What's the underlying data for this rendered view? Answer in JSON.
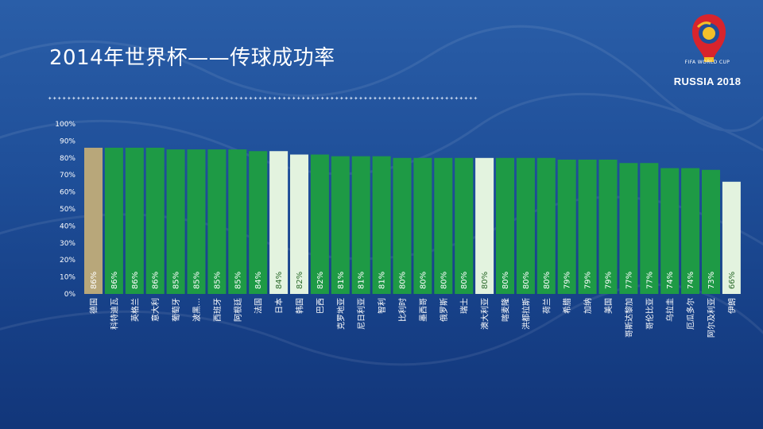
{
  "slide": {
    "title": "2014年世界杯——传球成功率",
    "divider": "✦✦✦✦✦✦✦✦✦✦✦✦✦✦✦✦✦✦✦✦✦✦✦✦✦✦✦✦✦✦✦✦✦✦✦✦✦✦✦✦✦✦✦✦✦✦✦✦✦✦✦✦✦✦✦✦✦✦✦✦✦✦✦✦✦✦✦✦✦✦✦✦✦✦✦✦✦✦✦✦✦✦✦✦✦✦✦✦✦✦",
    "logo_line1": "FIFA WORLD CUP",
    "logo_line2": "RUSSIA 2018",
    "logo_icon": "fifa-world-cup-trophy-icon"
  },
  "colors": {
    "bar_default": "#1e9a45",
    "bar_highlight_gold": "#b8a77a",
    "bar_highlight_light": "#e3f3df",
    "label_on_light": "#2a6a2a"
  },
  "chart_data": {
    "type": "bar",
    "title": "2014年世界杯——传球成功率",
    "categories": [
      "德国",
      "科特迪瓦",
      "英格兰",
      "意大利",
      "葡萄牙",
      "波黑…",
      "西班牙",
      "阿根廷",
      "法国",
      "日本",
      "韩国",
      "巴西",
      "克罗地亚",
      "尼日利亚",
      "智利",
      "比利时",
      "墨西哥",
      "俄罗斯",
      "瑞士",
      "澳大利亚",
      "喀麦隆",
      "洪都拉斯",
      "荷兰",
      "希腊",
      "加纳",
      "美国",
      "哥斯达黎加",
      "哥伦比亚",
      "乌拉圭",
      "厄瓜多尔",
      "阿尔及利亚",
      "伊朗"
    ],
    "values": [
      86,
      86,
      86,
      86,
      85,
      85,
      85,
      85,
      84,
      84,
      82,
      82,
      81,
      81,
      81,
      80,
      80,
      80,
      80,
      80,
      80,
      80,
      80,
      79,
      79,
      79,
      77,
      77,
      74,
      74,
      73,
      66
    ],
    "value_labels": [
      "86%",
      "86%",
      "86%",
      "86%",
      "85%",
      "85%",
      "85%",
      "85%",
      "84%",
      "84%",
      "82%",
      "82%",
      "81%",
      "81%",
      "81%",
      "80%",
      "80%",
      "80%",
      "80%",
      "80%",
      "80%",
      "80%",
      "80%",
      "79%",
      "79%",
      "79%",
      "77%",
      "77%",
      "74%",
      "74%",
      "73%",
      "66%"
    ],
    "highlight": [
      "gold",
      "",
      "",
      "",
      "",
      "",
      "",
      "",
      "",
      "light",
      "light",
      "",
      "",
      "",
      "",
      "",
      "",
      "",
      "",
      "light",
      "",
      "",
      "",
      "",
      "",
      "",
      "",
      "",
      "",
      "",
      "",
      "light"
    ],
    "y_ticks": [
      "0%",
      "10%",
      "20%",
      "30%",
      "40%",
      "50%",
      "60%",
      "70%",
      "80%",
      "90%",
      "100%"
    ],
    "ylim": [
      0,
      100
    ],
    "grid": false,
    "legend": "none"
  }
}
